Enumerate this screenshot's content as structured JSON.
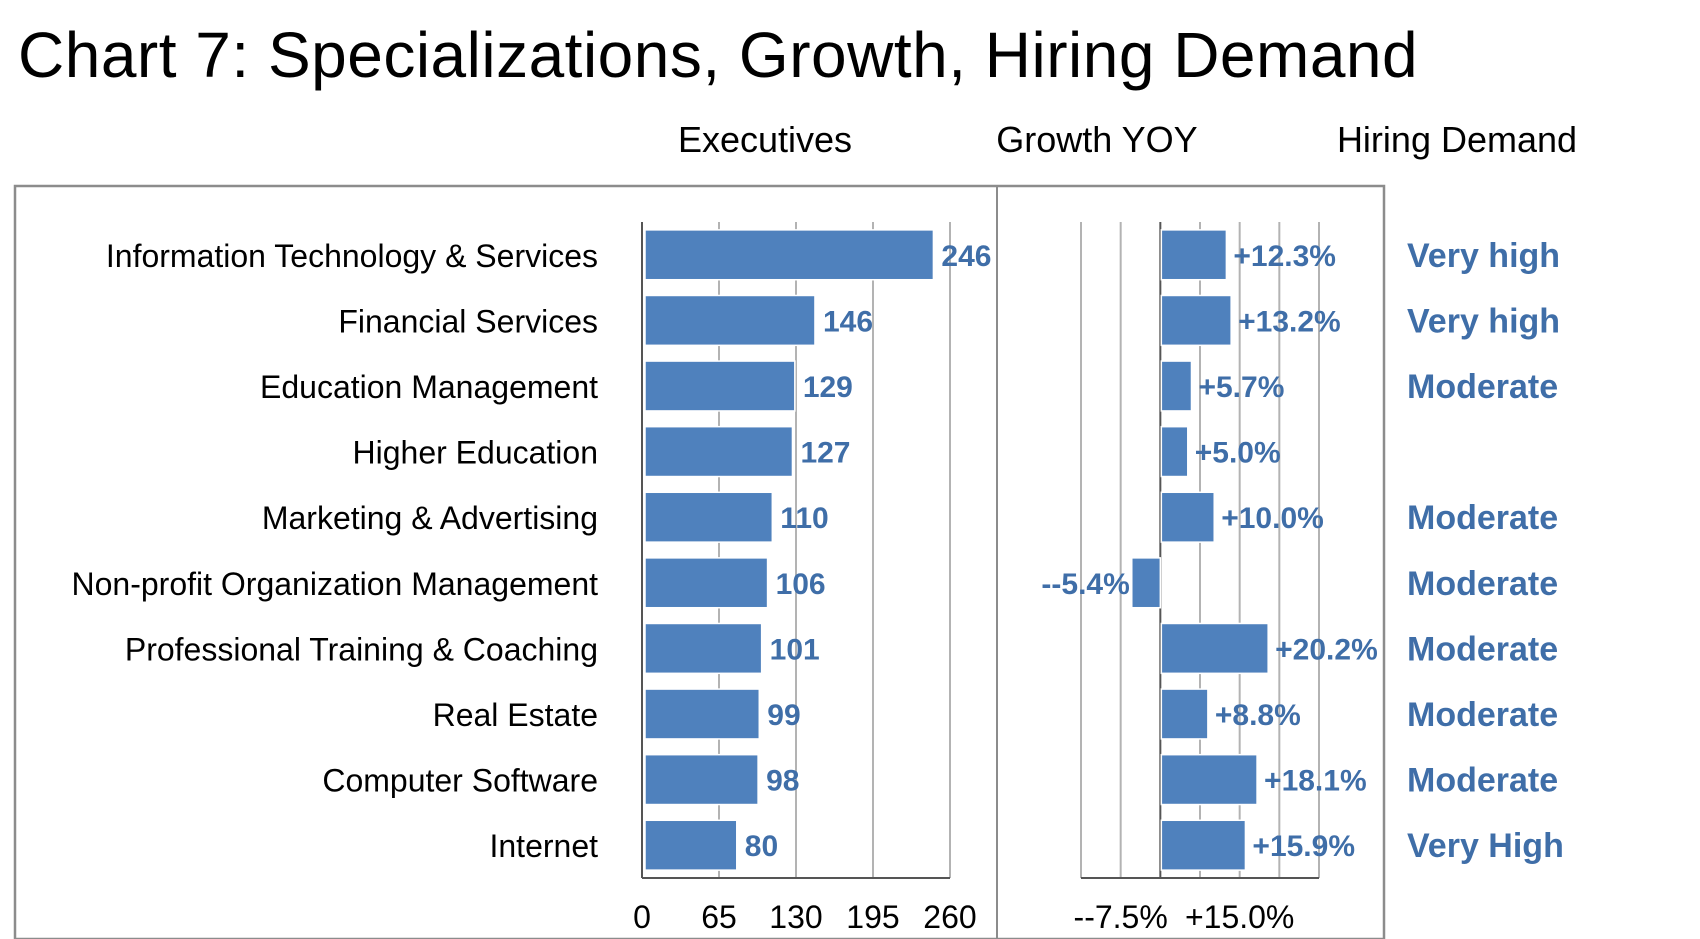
{
  "title": "Chart 7: Specializations, Growth, Hiring Demand",
  "column_headers": {
    "executives": "Executives",
    "growth": "Growth YOY",
    "hiring": "Hiring Demand"
  },
  "colors": {
    "bar": "#4f81bd",
    "label": "#3f6ea8",
    "grid": "#b3b3b3",
    "axis": "#555555",
    "frame": "#8c8c8c",
    "text": "#000000"
  },
  "chart_data": [
    {
      "type": "bar",
      "orientation": "horizontal",
      "title": "Executives",
      "categories": [
        "Information Technology & Services",
        "Financial Services",
        "Education Management",
        "Higher Education",
        "Marketing & Advertising",
        "Non-profit Organization Management",
        "Professional Training & Coaching",
        "Real Estate",
        "Computer Software",
        "Internet"
      ],
      "values": [
        246,
        146,
        129,
        127,
        110,
        106,
        101,
        99,
        98,
        80
      ],
      "value_labels": [
        "246",
        "146",
        "129",
        "127",
        "110",
        "106",
        "101",
        "99",
        "98",
        "80"
      ],
      "xlim": [
        0,
        260
      ],
      "xticks": [
        "0",
        "65",
        "130",
        "195",
        "260"
      ],
      "grid": true
    },
    {
      "type": "bar",
      "orientation": "horizontal",
      "title": "Growth YOY",
      "categories": [
        "Information Technology & Services",
        "Financial Services",
        "Education Management",
        "Higher Education",
        "Marketing & Advertising",
        "Non-profit Organization Management",
        "Professional Training & Coaching",
        "Real Estate",
        "Computer Software",
        "Internet"
      ],
      "values": [
        12.3,
        13.2,
        5.7,
        5.0,
        10.0,
        -5.4,
        20.2,
        8.8,
        18.1,
        15.9
      ],
      "value_labels": [
        "+12.3%",
        "+13.2%",
        "+5.7%",
        "+5.0%",
        "+10.0%",
        "--5.4%",
        "+20.2%",
        "+8.8%",
        "+18.1%",
        "+15.9%"
      ],
      "xlim": [
        -15,
        30
      ],
      "xticks": [
        "--7.5%",
        "+15.0%"
      ],
      "grid": true
    },
    {
      "type": "table",
      "title": "Hiring Demand",
      "values": [
        "Very high",
        "Very high",
        "Moderate",
        "",
        "Moderate",
        "Moderate",
        "Moderate",
        "Moderate",
        "Moderate",
        "Very High"
      ]
    }
  ]
}
